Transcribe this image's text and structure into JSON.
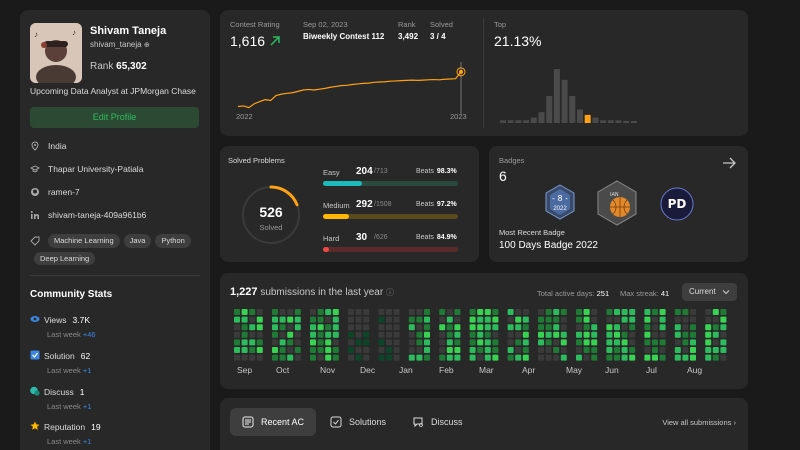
{
  "profile": {
    "name": "Shivam Taneja",
    "username": "shivam_taneja",
    "rank_label": "Rank",
    "rank": "65,302",
    "bio": "Upcoming Data Analyst at JPMorgan Chase",
    "edit_label": "Edit Profile",
    "location": "India",
    "school": "Thapar University-Patiala",
    "github": "ramen-7",
    "linkedin": "shivam-taneja-409a961b6",
    "skills": [
      "Machine Learning",
      "Java",
      "Python",
      "Deep Learning"
    ]
  },
  "community": {
    "title": "Community Stats",
    "stats": [
      {
        "label": "Views",
        "value": "3.7K",
        "last_week_label": "Last week",
        "delta": "+46"
      },
      {
        "label": "Solution",
        "value": "62",
        "last_week_label": "Last week",
        "delta": "+1"
      },
      {
        "label": "Discuss",
        "value": "1",
        "last_week_label": "Last week",
        "delta": "+1"
      },
      {
        "label": "Reputation",
        "value": "19",
        "last_week_label": "Last week",
        "delta": "+1"
      }
    ]
  },
  "contest": {
    "rating_label": "Contest Rating",
    "rating": "1,616",
    "date": "Sep 02, 2023",
    "contest_name": "Biweekly Contest 112",
    "rank_label": "Rank",
    "rank": "3,492",
    "solved_label": "Solved",
    "solved": "3 / 4",
    "year_start": "2022",
    "year_end": "2023",
    "top_label": "Top",
    "top_value": "21.13%",
    "rating_history": [
      1490,
      1492,
      1486,
      1500,
      1508,
      1515,
      1512,
      1530,
      1535,
      1538,
      1540,
      1545,
      1550,
      1552,
      1550,
      1553,
      1556,
      1560,
      1563,
      1566,
      1567,
      1570,
      1572,
      1574,
      1575,
      1578,
      1579,
      1580,
      1582,
      1583,
      1584,
      1585,
      1586,
      1585,
      1586,
      1587,
      1588,
      1587,
      1589,
      1590,
      1591,
      1616
    ],
    "distribution": [
      1,
      1,
      1,
      1,
      2,
      4,
      10,
      20,
      16,
      10,
      5,
      3,
      2,
      1,
      1,
      1,
      0.5,
      0.5
    ],
    "highlight_index": 11
  },
  "solved": {
    "title": "Solved Problems",
    "total": "526",
    "total_label": "Solved",
    "progress": 0.19,
    "difficulties": [
      {
        "name": "Easy",
        "count": "204",
        "total": "/713",
        "beats_label": "Beats",
        "beats": "98.3%",
        "fraction": 0.286,
        "color": "#1cbaba",
        "track": "#2b4a3e"
      },
      {
        "name": "Medium",
        "count": "292",
        "total": "/1508",
        "beats_label": "Beats",
        "beats": "97.2%",
        "fraction": 0.194,
        "color": "#ffb700",
        "track": "#5a4a1e"
      },
      {
        "name": "Hard",
        "count": "30",
        "total": "/626",
        "beats_label": "Beats",
        "beats": "84.9%",
        "fraction": 0.048,
        "color": "#ef4743",
        "track": "#5a2b2a"
      }
    ]
  },
  "badges": {
    "title": "Badges",
    "count": "6",
    "recent_label": "Most Recent Badge",
    "recent_name": "100 Days Badge 2022",
    "badge1_year": "2022"
  },
  "heatmap": {
    "count": "1,227",
    "title_rest": "submissions in the last year",
    "active_label": "Total active days:",
    "active_days": "251",
    "streak_label": "Max streak:",
    "streak": "41",
    "select_value": "Current",
    "months": [
      "Sep",
      "Oct",
      "Nov",
      "Dec",
      "Jan",
      "Feb",
      "Mar",
      "Apr",
      "May",
      "Jun",
      "Jul",
      "Aug"
    ]
  },
  "tabs": {
    "items": [
      "Recent AC",
      "Solutions",
      "Discuss"
    ],
    "view_all": "View all submissions"
  }
}
